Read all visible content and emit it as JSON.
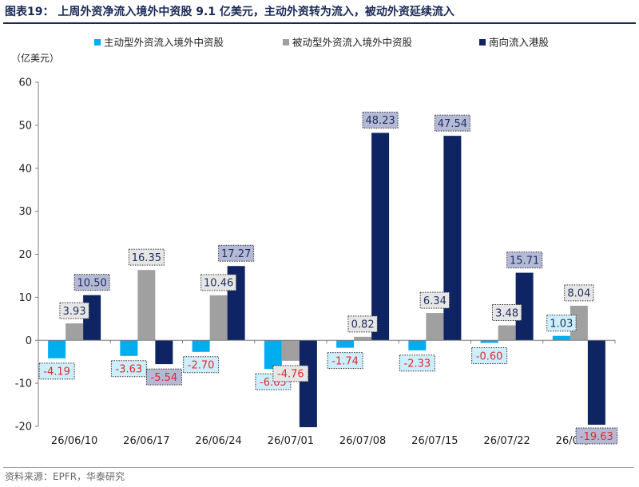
{
  "figure": {
    "title": "图表19：  上周外资净流入境外中资股 9.1 亿美元，主动外资转为流入，被动外资延续流入",
    "source": "资料来源：EPFR，华泰研究"
  },
  "chart_data": {
    "type": "bar",
    "ylabel": "（亿美元）",
    "xlabel": "",
    "ylim": [
      -20,
      60
    ],
    "yticks": [
      -20,
      -10,
      0,
      10,
      20,
      30,
      40,
      50,
      60
    ],
    "grid": false,
    "legend_position": "top",
    "categories": [
      "26/06/10",
      "26/06/17",
      "26/06/24",
      "26/07/01",
      "26/07/08",
      "26/07/15",
      "26/07/22",
      "26/07/29"
    ],
    "series": [
      {
        "name": "主动型外资流入境外中资股",
        "color": "#00aeef",
        "label_box": "#cdeefb",
        "label_text_positive": "#1f2d5c",
        "label_text_negative": "#e8262d",
        "values": [
          -4.19,
          -3.63,
          -2.7,
          -6.65,
          -1.74,
          -2.33,
          -0.6,
          1.03
        ],
        "labels": [
          "-4.19",
          "-3.63",
          "-2.70",
          "-6.65",
          "-1.74",
          "-2.33",
          "-0.60",
          "1.03"
        ]
      },
      {
        "name": "被动型外资流入境外中资股",
        "color": "#a0a0a0",
        "label_box": "#e6e6e6",
        "label_text_positive": "#1f2d5c",
        "label_text_negative": "#e8262d",
        "values": [
          3.93,
          16.35,
          10.46,
          -4.76,
          0.82,
          6.34,
          3.48,
          8.04
        ],
        "labels": [
          "3.93",
          "16.35",
          "10.46",
          "-4.76",
          "0.82",
          "6.34",
          "3.48",
          "8.04"
        ]
      },
      {
        "name": "南向流入港股",
        "color": "#0f2463",
        "label_box": "#b4bad6",
        "label_text_positive": "#1f2d5c",
        "label_text_negative": "#e8262d",
        "values": [
          10.5,
          -5.54,
          17.27,
          -20.2,
          48.23,
          47.54,
          15.71,
          -19.63
        ],
        "labels": [
          "10.50",
          "-5.54",
          "17.27",
          "",
          "48.23",
          "47.54",
          "15.71",
          "-19.63"
        ]
      }
    ]
  }
}
